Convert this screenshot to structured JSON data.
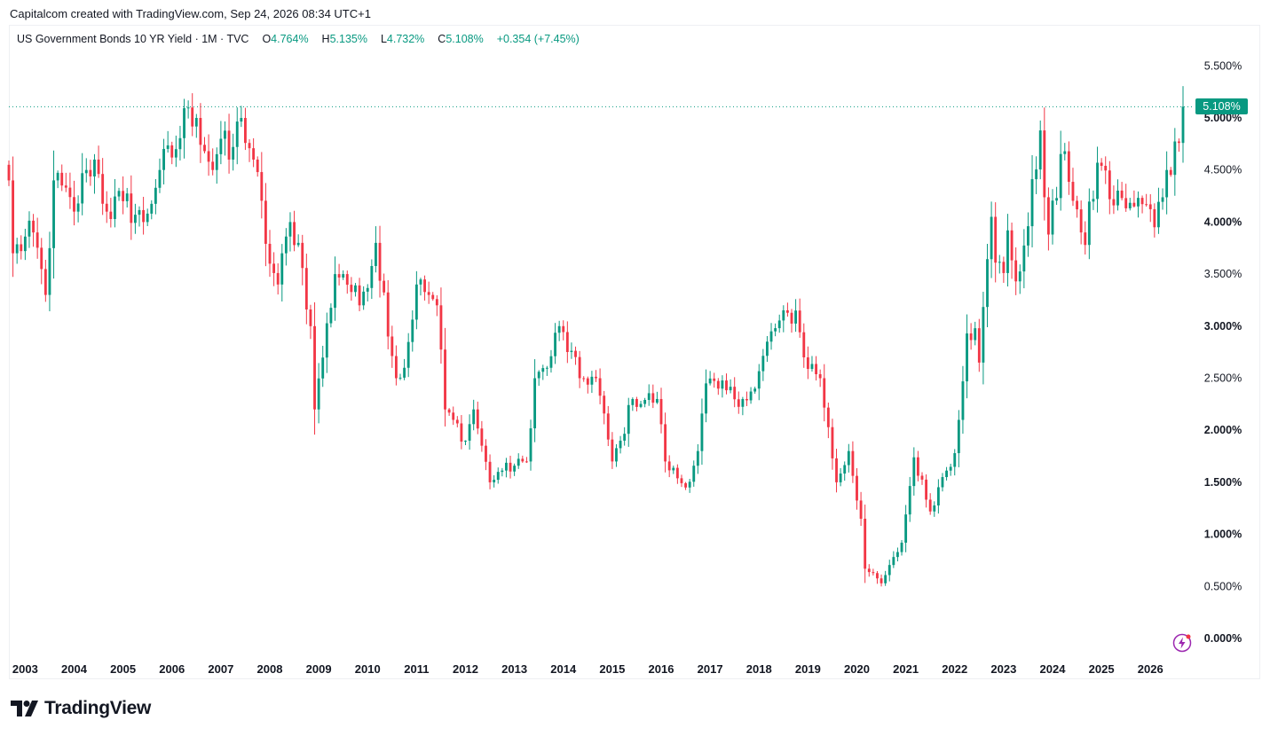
{
  "header": {
    "caption": "Capitalcom created with TradingView.com, Sep 24, 2026 08:34 UTC+1"
  },
  "legend": {
    "symbol": "US Government Bonds 10 YR Yield · 1M · TVC",
    "o_label": "O",
    "o_value": "4.764%",
    "h_label": "H",
    "h_value": "5.135%",
    "l_label": "L",
    "l_value": "4.732%",
    "c_label": "C",
    "c_value": "5.108%",
    "change": "+0.354 (+7.45%)"
  },
  "last_price_tag": "5.108%",
  "brand": {
    "name": "TradingView",
    "icon": "tradingview-logo-icon"
  },
  "colors": {
    "up": "#089981",
    "down": "#f23645",
    "text": "#131722",
    "grid_line": "#089981"
  },
  "chart_data": {
    "type": "candlestick",
    "interval": "1M",
    "title": "US Government Bonds 10 YR Yield",
    "y_unit": "%",
    "ylim": [
      0,
      5.75
    ],
    "y_ticks": [
      "0.000%",
      "0.500%",
      "1.000%",
      "1.500%",
      "2.000%",
      "2.500%",
      "3.000%",
      "3.500%",
      "4.000%",
      "4.500%",
      "5.000%",
      "5.500%"
    ],
    "y_ticks_bold": [
      "0.000%",
      "1.000%",
      "1.500%",
      "2.000%",
      "3.000%",
      "4.000%",
      "5.000%"
    ],
    "x_ticks": [
      "2003",
      "2004",
      "2005",
      "2006",
      "2007",
      "2008",
      "2009",
      "2010",
      "2011",
      "2012",
      "2013",
      "2014",
      "2015",
      "2016",
      "2017",
      "2018",
      "2019",
      "2020",
      "2021",
      "2022",
      "2023",
      "2024",
      "2025",
      "2026"
    ],
    "x_start": "2002-09",
    "x_end": "2026-09",
    "grid": false,
    "last_close": 5.108,
    "anchors": [
      [
        "2002-09",
        4.4
      ],
      [
        "2002-10",
        3.7
      ],
      [
        "2003-03",
        3.9
      ],
      [
        "2003-06",
        3.3
      ],
      [
        "2003-08",
        4.4
      ],
      [
        "2004-01",
        4.1
      ],
      [
        "2004-04",
        4.5
      ],
      [
        "2004-06",
        4.6
      ],
      [
        "2004-09",
        4.1
      ],
      [
        "2005-01",
        4.2
      ],
      [
        "2005-06",
        4.0
      ],
      [
        "2005-10",
        4.5
      ],
      [
        "2006-02",
        4.7
      ],
      [
        "2006-05",
        5.1
      ],
      [
        "2006-07",
        5.0
      ],
      [
        "2006-11",
        4.5
      ],
      [
        "2007-01",
        4.8
      ],
      [
        "2007-03",
        4.6
      ],
      [
        "2007-06",
        5.0
      ],
      [
        "2007-09",
        4.6
      ],
      [
        "2008-01",
        3.6
      ],
      [
        "2008-03",
        3.4
      ],
      [
        "2008-06",
        4.0
      ],
      [
        "2008-08",
        3.8
      ],
      [
        "2008-11",
        3.0
      ],
      [
        "2008-12",
        2.2
      ],
      [
        "2009-05",
        3.5
      ],
      [
        "2009-07",
        3.5
      ],
      [
        "2009-11",
        3.2
      ],
      [
        "2010-03",
        3.8
      ],
      [
        "2010-08",
        2.5
      ],
      [
        "2010-10",
        2.6
      ],
      [
        "2011-01",
        3.4
      ],
      [
        "2011-04",
        3.3
      ],
      [
        "2011-06",
        3.2
      ],
      [
        "2011-08",
        2.2
      ],
      [
        "2011-10",
        2.1
      ],
      [
        "2012-01",
        1.9
      ],
      [
        "2012-03",
        2.2
      ],
      [
        "2012-07",
        1.5
      ],
      [
        "2012-09",
        1.6
      ],
      [
        "2013-04",
        1.7
      ],
      [
        "2013-06",
        2.5
      ],
      [
        "2013-09",
        2.6
      ],
      [
        "2013-12",
        3.0
      ],
      [
        "2014-05",
        2.5
      ],
      [
        "2014-09",
        2.5
      ],
      [
        "2015-01",
        1.7
      ],
      [
        "2015-03",
        1.9
      ],
      [
        "2015-06",
        2.3
      ],
      [
        "2015-12",
        2.3
      ],
      [
        "2016-02",
        1.7
      ],
      [
        "2016-07",
        1.45
      ],
      [
        "2016-10",
        1.8
      ],
      [
        "2016-12",
        2.45
      ],
      [
        "2017-03",
        2.4
      ],
      [
        "2017-09",
        2.3
      ],
      [
        "2017-12",
        2.4
      ],
      [
        "2018-04",
        2.95
      ],
      [
        "2018-10",
        3.15
      ],
      [
        "2018-12",
        2.7
      ],
      [
        "2019-04",
        2.5
      ],
      [
        "2019-08",
        1.5
      ],
      [
        "2019-11",
        1.8
      ],
      [
        "2020-02",
        1.15
      ],
      [
        "2020-03",
        0.67
      ],
      [
        "2020-07",
        0.53
      ],
      [
        "2020-12",
        0.92
      ],
      [
        "2021-03",
        1.74
      ],
      [
        "2021-07",
        1.22
      ],
      [
        "2021-10",
        1.55
      ],
      [
        "2022-01",
        1.78
      ],
      [
        "2022-04",
        2.93
      ],
      [
        "2022-06",
        2.98
      ],
      [
        "2022-07",
        2.65
      ],
      [
        "2022-10",
        4.05
      ],
      [
        "2022-11",
        3.61
      ],
      [
        "2023-01",
        3.51
      ],
      [
        "2023-02",
        3.92
      ],
      [
        "2023-04",
        3.43
      ],
      [
        "2023-07",
        3.96
      ],
      [
        "2023-10",
        4.88
      ],
      [
        "2023-12",
        3.88
      ],
      [
        "2024-04",
        4.68
      ],
      [
        "2024-08",
        3.9
      ],
      [
        "2024-09",
        3.78
      ],
      [
        "2024-12",
        4.57
      ],
      [
        "2025-01",
        4.54
      ],
      [
        "2025-04",
        4.16
      ],
      [
        "2025-06",
        4.23
      ],
      [
        "2025-09",
        4.15
      ],
      [
        "2025-12",
        4.17
      ],
      [
        "2026-02",
        3.95
      ],
      [
        "2026-05",
        4.5
      ],
      [
        "2026-08",
        4.76
      ],
      [
        "2026-09",
        5.108
      ]
    ]
  }
}
